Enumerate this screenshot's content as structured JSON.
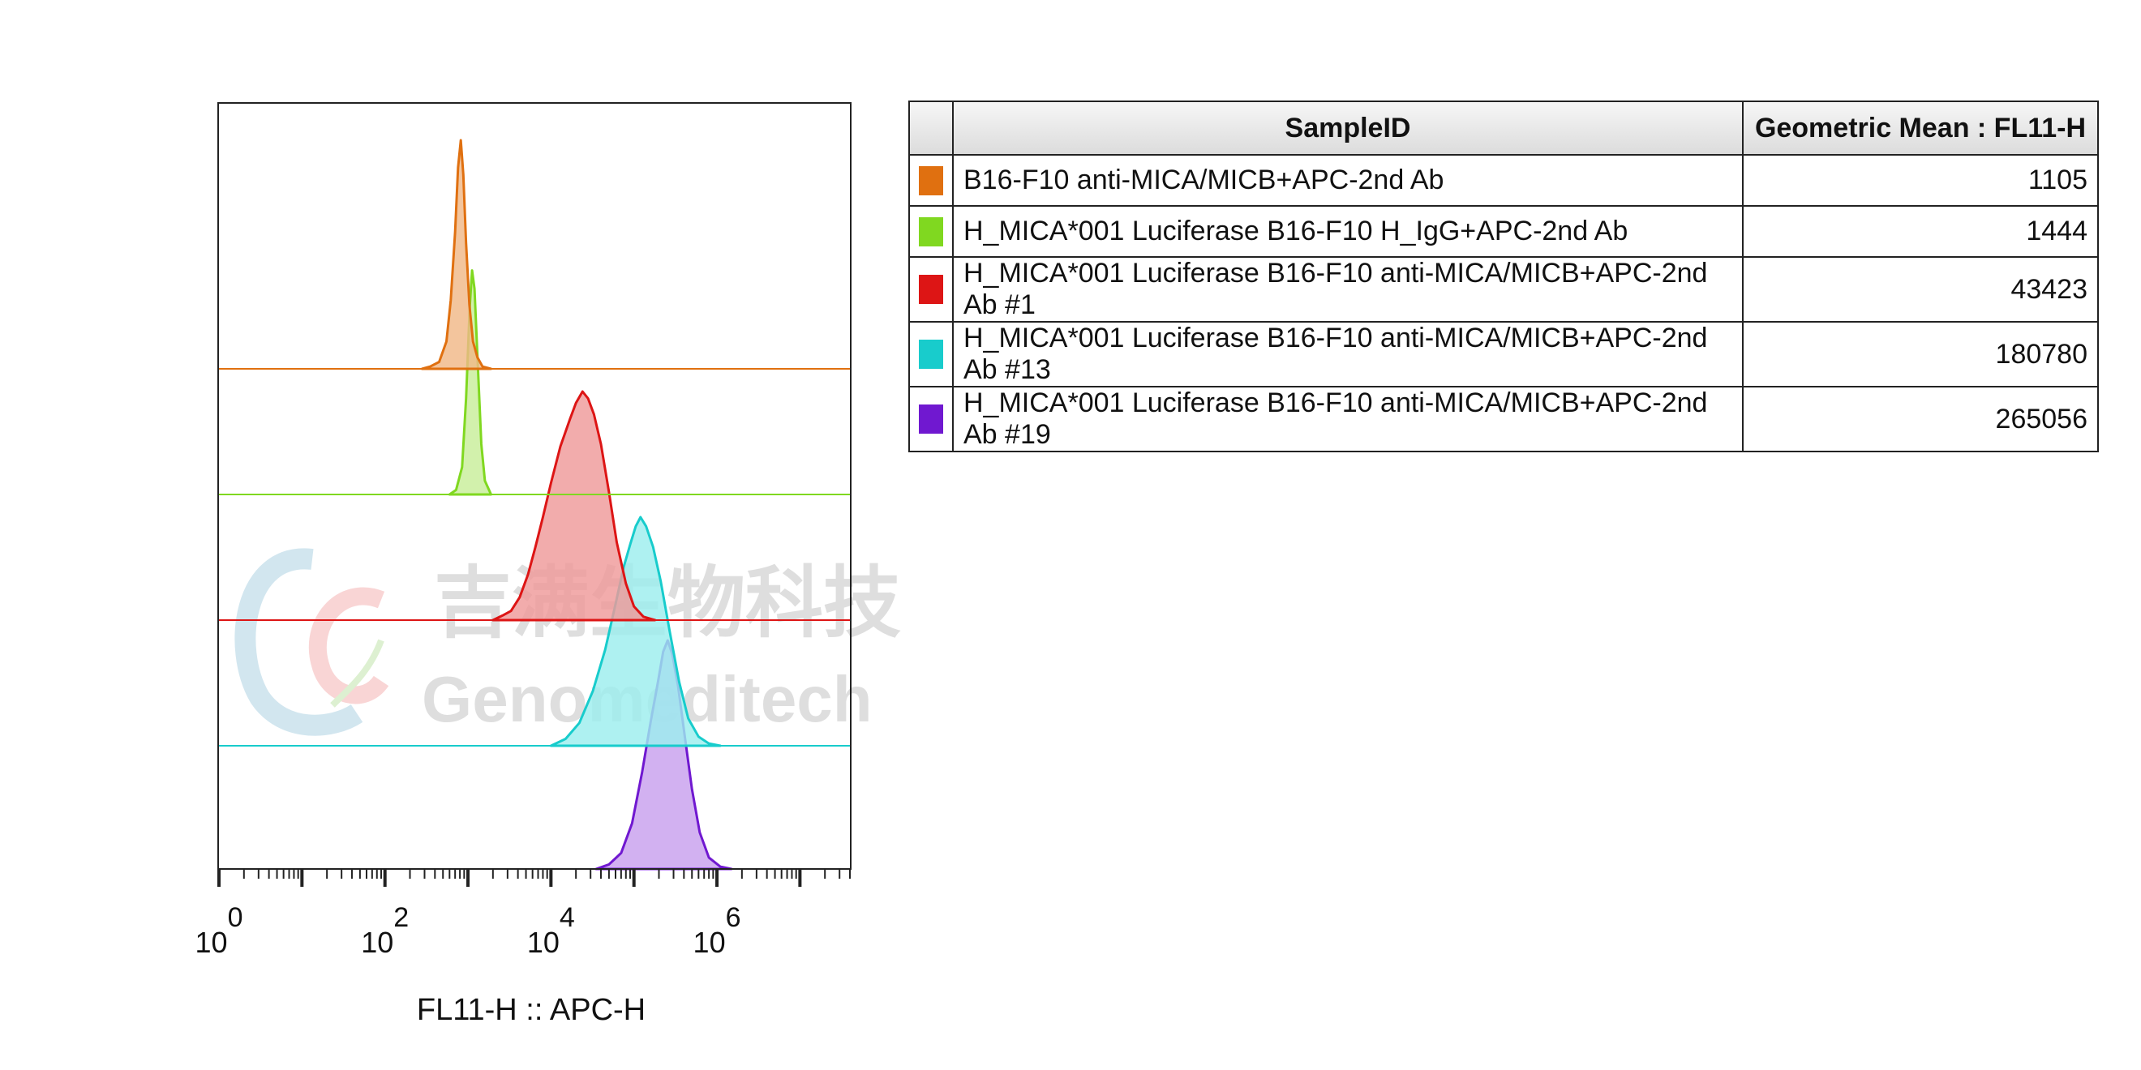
{
  "chart_data": {
    "type": "area",
    "subtype": "flow-cytometry-offset-histogram",
    "xlabel": "FL11-H :: APC-H",
    "x_scale": "log",
    "xlim": [
      1,
      40000000
    ],
    "x_tick_labels": [
      {
        "base": "10",
        "exp": "0",
        "value": 1
      },
      {
        "base": "10",
        "exp": "2",
        "value": 100
      },
      {
        "base": "10",
        "exp": "4",
        "value": 10000
      },
      {
        "base": "10",
        "exp": "6",
        "value": 1000000
      }
    ],
    "grid": false,
    "legend": "table-right",
    "series": [
      {
        "name": "B16-F10 anti-MICA/MICB+APC-2nd Ab",
        "color": "#e07010",
        "fill": "#f0b888",
        "points": [
          [
            280,
            0
          ],
          [
            350,
            0.01
          ],
          [
            450,
            0.03
          ],
          [
            550,
            0.12
          ],
          [
            620,
            0.3
          ],
          [
            700,
            0.6
          ],
          [
            760,
            0.88
          ],
          [
            820,
            1
          ],
          [
            880,
            0.85
          ],
          [
            950,
            0.55
          ],
          [
            1040,
            0.28
          ],
          [
            1150,
            0.12
          ],
          [
            1300,
            0.05
          ],
          [
            1500,
            0.01
          ],
          [
            1900,
            0
          ]
        ]
      },
      {
        "name": "H_MICA*001 Luciferase B16-F10 H_IgG+APC-2nd Ab",
        "color": "#80d820",
        "fill": "#c8ee9a",
        "points": [
          [
            600,
            0
          ],
          [
            720,
            0.02
          ],
          [
            850,
            0.12
          ],
          [
            950,
            0.42
          ],
          [
            1050,
            0.82
          ],
          [
            1120,
            0.98
          ],
          [
            1200,
            0.9
          ],
          [
            1320,
            0.55
          ],
          [
            1450,
            0.22
          ],
          [
            1600,
            0.06
          ],
          [
            1900,
            0
          ]
        ]
      },
      {
        "name": "H_MICA*001 Luciferase B16-F10 anti-MICA/MICB+APC-2nd Ab #1",
        "color": "#dd1515",
        "fill": "#ef9a9a",
        "points": [
          [
            2000,
            0
          ],
          [
            2600,
            0.02
          ],
          [
            3300,
            0.04
          ],
          [
            4200,
            0.1
          ],
          [
            5300,
            0.2
          ],
          [
            6500,
            0.32
          ],
          [
            8000,
            0.45
          ],
          [
            10000,
            0.6
          ],
          [
            13000,
            0.76
          ],
          [
            17000,
            0.88
          ],
          [
            20000,
            0.95
          ],
          [
            24000,
            1
          ],
          [
            28000,
            0.97
          ],
          [
            33000,
            0.9
          ],
          [
            40000,
            0.77
          ],
          [
            50000,
            0.56
          ],
          [
            62000,
            0.34
          ],
          [
            80000,
            0.16
          ],
          [
            100000,
            0.06
          ],
          [
            130000,
            0.015
          ],
          [
            180000,
            0
          ]
        ]
      },
      {
        "name": "H_MICA*001 Luciferase B16-F10 anti-MICA/MICB+APC-2nd Ab #13",
        "color": "#18cccc",
        "fill": "#9ceeee",
        "points": [
          [
            10000,
            0
          ],
          [
            15000,
            0.03
          ],
          [
            22000,
            0.1
          ],
          [
            32000,
            0.24
          ],
          [
            45000,
            0.42
          ],
          [
            60000,
            0.62
          ],
          [
            75000,
            0.78
          ],
          [
            90000,
            0.88
          ],
          [
            105000,
            0.96
          ],
          [
            120000,
            1
          ],
          [
            140000,
            0.96
          ],
          [
            170000,
            0.87
          ],
          [
            210000,
            0.72
          ],
          [
            270000,
            0.5
          ],
          [
            350000,
            0.28
          ],
          [
            450000,
            0.12
          ],
          [
            600000,
            0.04
          ],
          [
            800000,
            0.01
          ],
          [
            1100000,
            0
          ]
        ]
      },
      {
        "name": "H_MICA*001 Luciferase B16-F10 anti-MICA/MICB+APC-2nd Ab #19",
        "color": "#7018d0",
        "fill": "#c8a0ee",
        "points": [
          [
            35000,
            0
          ],
          [
            50000,
            0.02
          ],
          [
            70000,
            0.07
          ],
          [
            95000,
            0.2
          ],
          [
            125000,
            0.42
          ],
          [
            160000,
            0.65
          ],
          [
            195000,
            0.82
          ],
          [
            225000,
            0.95
          ],
          [
            255000,
            1
          ],
          [
            290000,
            0.94
          ],
          [
            340000,
            0.8
          ],
          [
            410000,
            0.58
          ],
          [
            500000,
            0.35
          ],
          [
            620000,
            0.16
          ],
          [
            800000,
            0.05
          ],
          [
            1100000,
            0.01
          ],
          [
            1500000,
            0
          ]
        ]
      }
    ]
  },
  "table": {
    "headers": {
      "sample": "SampleID",
      "value": "Geometric Mean : FL11-H"
    },
    "rows": [
      {
        "color": "#e07010",
        "sample": "B16-F10 anti-MICA/MICB+APC-2nd Ab",
        "value": "1105"
      },
      {
        "color": "#80d820",
        "sample": "H_MICA*001 Luciferase B16-F10 H_IgG+APC-2nd Ab",
        "value": "1444"
      },
      {
        "color": "#dd1515",
        "sample": "H_MICA*001 Luciferase B16-F10 anti-MICA/MICB+APC-2nd Ab #1",
        "value": "43423"
      },
      {
        "color": "#18cccc",
        "sample": "H_MICA*001 Luciferase B16-F10 anti-MICA/MICB+APC-2nd Ab #13",
        "value": "180780"
      },
      {
        "color": "#7018d0",
        "sample": "H_MICA*001 Luciferase B16-F10 anti-MICA/MICB+APC-2nd Ab #19",
        "value": "265056"
      }
    ]
  },
  "watermark": {
    "chinese": "吉满生物科技",
    "latin": "Genomeditech"
  }
}
